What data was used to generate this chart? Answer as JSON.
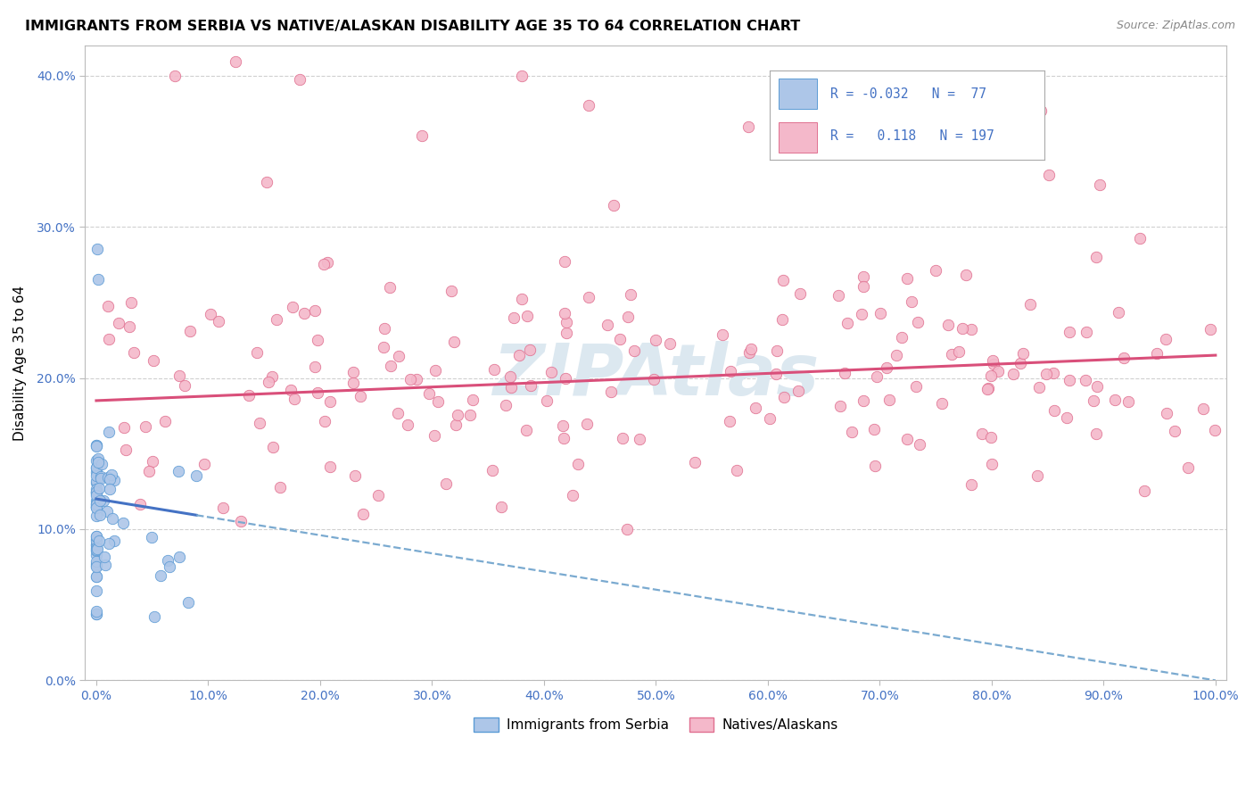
{
  "title": "IMMIGRANTS FROM SERBIA VS NATIVE/ALASKAN DISABILITY AGE 35 TO 64 CORRELATION CHART",
  "source": "Source: ZipAtlas.com",
  "ylabel": "Disability Age 35 to 64",
  "blue_color": "#adc6e8",
  "blue_edge_color": "#5b9bd5",
  "blue_line_color": "#4472c4",
  "blue_dash_color": "#7aaad0",
  "pink_color": "#f4b8ca",
  "pink_edge_color": "#e07090",
  "pink_line_color": "#d94f7a",
  "watermark_color": "#dce8f0",
  "background_color": "#ffffff",
  "grid_color": "#d0d0d0",
  "ytick_labels": [
    "0.0%",
    "10.0%",
    "20.0%",
    "30.0%",
    "40.0%"
  ],
  "xtick_labels": [
    "0.0%",
    "10.0%",
    "20.0%",
    "30.0%",
    "40.0%",
    "50.0%",
    "60.0%",
    "70.0%",
    "80.0%",
    "90.0%",
    "100.0%"
  ],
  "yticks": [
    0.0,
    0.1,
    0.2,
    0.3,
    0.4
  ],
  "xticks": [
    0.0,
    0.1,
    0.2,
    0.3,
    0.4,
    0.5,
    0.6,
    0.7,
    0.8,
    0.9,
    1.0
  ],
  "blue_R": -0.032,
  "blue_N": 77,
  "pink_R": 0.118,
  "pink_N": 197,
  "marker_size": 80,
  "legend_label_blue": "Immigrants from Serbia",
  "legend_label_pink": "Natives/Alaskans"
}
